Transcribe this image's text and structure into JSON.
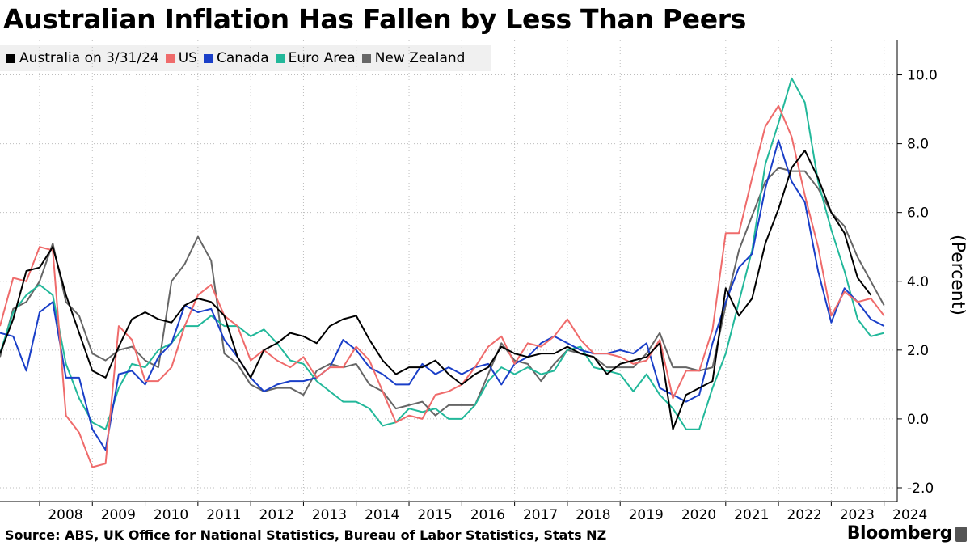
{
  "title": "Australian Inflation Has Fallen by Less Than Peers",
  "footer": {
    "source": "Source: ABS, UK Office for National Statistics, Bureau of Labor Statistics, Stats NZ",
    "brand": "Bloomberg",
    "brand_icon": "bloomberg-terminal-icon"
  },
  "chart_data": {
    "type": "line",
    "title": "Australian Inflation Has Fallen by Less Than Peers",
    "ylabel": "(Percent)",
    "xlabel": "",
    "ylim": [
      -2.4,
      11.0
    ],
    "yticks": [
      -2.0,
      0.0,
      2.0,
      4.0,
      6.0,
      8.0,
      10.0
    ],
    "ytick_labels": [
      "-2.0",
      "0.0",
      "2.0",
      "4.0",
      "6.0",
      "8.0",
      "10.0"
    ],
    "xlim": [
      2007.25,
      2024.25
    ],
    "xticks": [
      2008,
      2009,
      2010,
      2011,
      2012,
      2013,
      2014,
      2015,
      2016,
      2017,
      2018,
      2019,
      2020,
      2021,
      2022,
      2023,
      2024
    ],
    "grid": true,
    "legend_position": "top-left",
    "series": [
      {
        "name": "Australia on 3/31/24",
        "color": "#000000",
        "x_start": 2007.25,
        "x_step": 0.25,
        "values": [
          1.9,
          2.9,
          4.3,
          4.4,
          5.0,
          3.6,
          2.5,
          1.4,
          1.2,
          2.1,
          2.9,
          3.1,
          2.9,
          2.8,
          3.3,
          3.5,
          3.4,
          3.0,
          1.8,
          1.2,
          2.0,
          2.2,
          2.5,
          2.4,
          2.2,
          2.7,
          2.9,
          3.0,
          2.3,
          1.7,
          1.3,
          1.5,
          1.5,
          1.7,
          1.3,
          1.0,
          1.3,
          1.5,
          2.1,
          1.9,
          1.8,
          1.9,
          1.9,
          2.1,
          1.9,
          1.8,
          1.3,
          1.6,
          1.7,
          1.8,
          2.2,
          -0.3,
          0.7,
          0.9,
          1.1,
          3.8,
          3.0,
          3.5,
          5.1,
          6.1,
          7.3,
          7.8,
          7.0,
          6.0,
          5.4,
          4.1,
          3.6
        ]
      },
      {
        "name": "US",
        "color": "#ef6b6b",
        "x_start": 2007.25,
        "x_step": 0.25,
        "values": [
          2.7,
          4.1,
          4.0,
          5.0,
          4.9,
          0.1,
          -0.4,
          -1.4,
          -1.3,
          2.7,
          2.3,
          1.1,
          1.1,
          1.5,
          2.7,
          3.6,
          3.9,
          3.0,
          2.7,
          1.7,
          2.0,
          1.7,
          1.5,
          1.8,
          1.2,
          1.5,
          1.5,
          2.1,
          1.7,
          0.8,
          -0.1,
          0.1,
          -0.0,
          0.7,
          0.8,
          1.0,
          1.5,
          2.1,
          2.4,
          1.6,
          2.2,
          2.1,
          2.4,
          2.9,
          2.3,
          1.9,
          1.9,
          1.8,
          1.6,
          1.7,
          2.3,
          0.6,
          1.4,
          1.4,
          2.6,
          5.4,
          5.4,
          7.0,
          8.5,
          9.1,
          8.2,
          6.5,
          5.0,
          3.0,
          3.7,
          3.4,
          3.5,
          3.0
        ]
      },
      {
        "name": "Canada",
        "color": "#1a3fc8",
        "x_start": 2007.25,
        "x_step": 0.25,
        "values": [
          2.5,
          2.4,
          1.4,
          3.1,
          3.4,
          1.2,
          1.2,
          -0.3,
          -0.9,
          1.3,
          1.4,
          1.0,
          1.8,
          2.2,
          3.3,
          3.1,
          3.2,
          2.3,
          1.8,
          1.2,
          0.8,
          1.0,
          1.1,
          1.1,
          1.2,
          1.5,
          2.3,
          2.0,
          1.5,
          1.3,
          1.0,
          1.0,
          1.6,
          1.3,
          1.5,
          1.3,
          1.5,
          1.6,
          1.0,
          1.6,
          1.8,
          2.2,
          2.4,
          2.2,
          2.0,
          1.9,
          1.9,
          2.0,
          1.9,
          2.2,
          0.9,
          0.7,
          0.5,
          0.7,
          2.2,
          3.4,
          4.4,
          4.8,
          6.7,
          8.1,
          6.9,
          6.3,
          4.3,
          2.8,
          3.8,
          3.4,
          2.9,
          2.7
        ]
      },
      {
        "name": "Euro Area",
        "color": "#22b89a",
        "x_start": 2007.25,
        "x_step": 0.25,
        "values": [
          1.9,
          3.1,
          3.6,
          3.9,
          3.6,
          1.6,
          0.6,
          -0.1,
          -0.3,
          0.9,
          1.6,
          1.5,
          2.0,
          2.2,
          2.7,
          2.7,
          3.0,
          2.7,
          2.7,
          2.4,
          2.6,
          2.2,
          1.7,
          1.6,
          1.1,
          0.8,
          0.5,
          0.5,
          0.3,
          -0.2,
          -0.1,
          0.3,
          0.2,
          0.3,
          0.0,
          0.0,
          0.4,
          1.1,
          1.5,
          1.3,
          1.5,
          1.3,
          1.4,
          2.0,
          2.1,
          1.5,
          1.4,
          1.3,
          0.8,
          1.3,
          0.7,
          0.3,
          -0.3,
          -0.3,
          0.9,
          1.9,
          3.4,
          4.9,
          7.4,
          8.6,
          9.9,
          9.2,
          6.9,
          5.5,
          4.3,
          2.9,
          2.4,
          2.5
        ]
      },
      {
        "name": "New Zealand",
        "color": "#666666",
        "x_start": 2007.25,
        "x_step": 0.25,
        "values": [
          1.8,
          3.2,
          3.4,
          4.0,
          5.1,
          3.4,
          3.0,
          1.9,
          1.7,
          2.0,
          2.1,
          1.7,
          1.5,
          4.0,
          4.5,
          5.3,
          4.6,
          1.9,
          1.6,
          1.0,
          0.8,
          0.9,
          0.9,
          0.7,
          1.4,
          1.6,
          1.5,
          1.6,
          1.0,
          0.8,
          0.3,
          0.4,
          0.5,
          0.1,
          0.4,
          0.4,
          0.4,
          1.3,
          2.2,
          1.7,
          1.6,
          1.1,
          1.6,
          2.0,
          1.9,
          1.8,
          1.5,
          1.5,
          1.5,
          1.9,
          2.5,
          1.5,
          1.5,
          1.4,
          1.5,
          3.3,
          4.9,
          5.9,
          6.9,
          7.3,
          7.2,
          7.2,
          6.7,
          6.0,
          5.6,
          4.7,
          4.0,
          3.3
        ]
      }
    ]
  }
}
